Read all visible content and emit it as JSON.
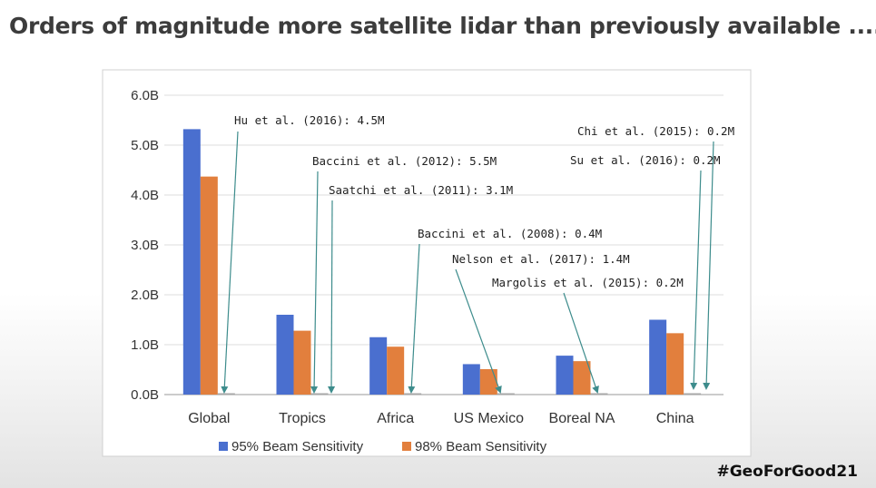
{
  "slide": {
    "title": "Orders of magnitude more satellite lidar than previously available ....",
    "hashtag": "#GeoForGood21"
  },
  "colors": {
    "series_95": "#4a6fcf",
    "series_98": "#e27f3d",
    "series_prior": "#a9a9a9",
    "annotation_arrow": "#3d8c8c"
  },
  "chart_data": {
    "type": "bar",
    "categories": [
      "Global",
      "Tropics",
      "Africa",
      "US Mexico",
      "Boreal NA",
      "China"
    ],
    "series": [
      {
        "name": "95% Beam Sensitivity",
        "values": [
          5.32,
          1.6,
          1.15,
          0.61,
          0.78,
          1.5
        ]
      },
      {
        "name": "98% Beam Sensitivity",
        "values": [
          4.37,
          1.28,
          0.96,
          0.51,
          0.67,
          1.23
        ]
      }
    ],
    "prior_values": [
      0.0045,
      0.0055,
      0.0031,
      0.0004,
      0.0014,
      0.0002
    ],
    "yticks": [
      "0.0B",
      "1.0B",
      "2.0B",
      "3.0B",
      "4.0B",
      "5.0B",
      "6.0B"
    ],
    "ylim": [
      0,
      6
    ],
    "legend_position": "bottom",
    "annotations": [
      {
        "text": "Hu et al. (2016): 4.5M",
        "category": 0
      },
      {
        "text": "Baccini et al. (2012): 5.5M",
        "category": 1
      },
      {
        "text": "Saatchi et al. (2011): 3.1M",
        "category": 1
      },
      {
        "text": "Baccini et al. (2008): 0.4M",
        "category": 2
      },
      {
        "text": "Nelson et al. (2017): 1.4M",
        "category": 3
      },
      {
        "text": "Margolis et al. (2015): 0.2M",
        "category": 4
      },
      {
        "text": "Chi et al. (2015): 0.2M",
        "category": 5
      },
      {
        "text": "Su et al. (2016): 0.2M",
        "category": 5
      }
    ]
  }
}
